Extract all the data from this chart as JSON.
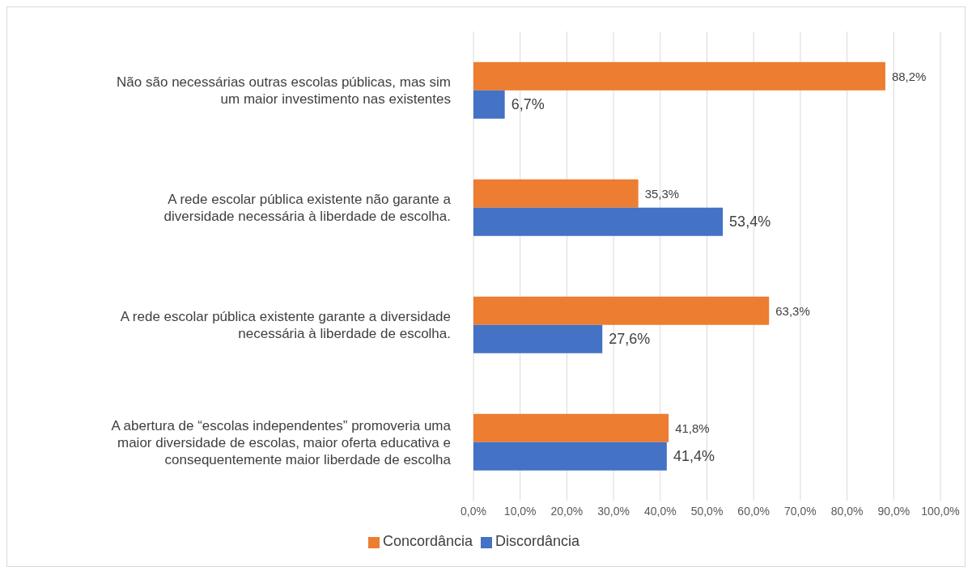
{
  "chart_data": {
    "type": "bar",
    "orientation": "horizontal",
    "categories": [
      "Não são necessárias outras escolas públicas, mas sim um maior investimento nas existentes",
      "A rede escolar pública existente não garante a diversidade necessária à liberdade de escolha.",
      "A rede escolar pública existente garante a diversidade necessária à liberdade de escolha.",
      "A abertura de “escolas independentes” promoveria uma maior diversidade de escolas, maior oferta educativa e consequentemente maior liberdade de escolha"
    ],
    "series": [
      {
        "name": "Concordância",
        "color": "#ed7d31",
        "values": [
          88.2,
          35.3,
          63.3,
          41.8
        ],
        "value_labels": [
          "88,2%",
          "35,3%",
          "63,3%",
          "41,8%"
        ]
      },
      {
        "name": "Discordância",
        "color": "#4472c4",
        "values": [
          6.7,
          53.4,
          27.6,
          41.4
        ],
        "value_labels": [
          "6,7%",
          "53,4%",
          "27,6%",
          "41,4%"
        ]
      }
    ],
    "xlim": [
      0,
      100
    ],
    "xticks": [
      {
        "value": 0,
        "label": "0,0%"
      },
      {
        "value": 10,
        "label": "10,0%"
      },
      {
        "value": 20,
        "label": "20,0%"
      },
      {
        "value": 30,
        "label": "30,0%"
      },
      {
        "value": 40,
        "label": "40,0%"
      },
      {
        "value": 50,
        "label": "50,0%"
      },
      {
        "value": 60,
        "label": "60,0%"
      },
      {
        "value": 70,
        "label": "70,0%"
      },
      {
        "value": 80,
        "label": "80,0%"
      },
      {
        "value": 90,
        "label": "90,0%"
      },
      {
        "value": 100,
        "label": "100,0%"
      }
    ],
    "grid": "x",
    "legend": "bottom"
  }
}
